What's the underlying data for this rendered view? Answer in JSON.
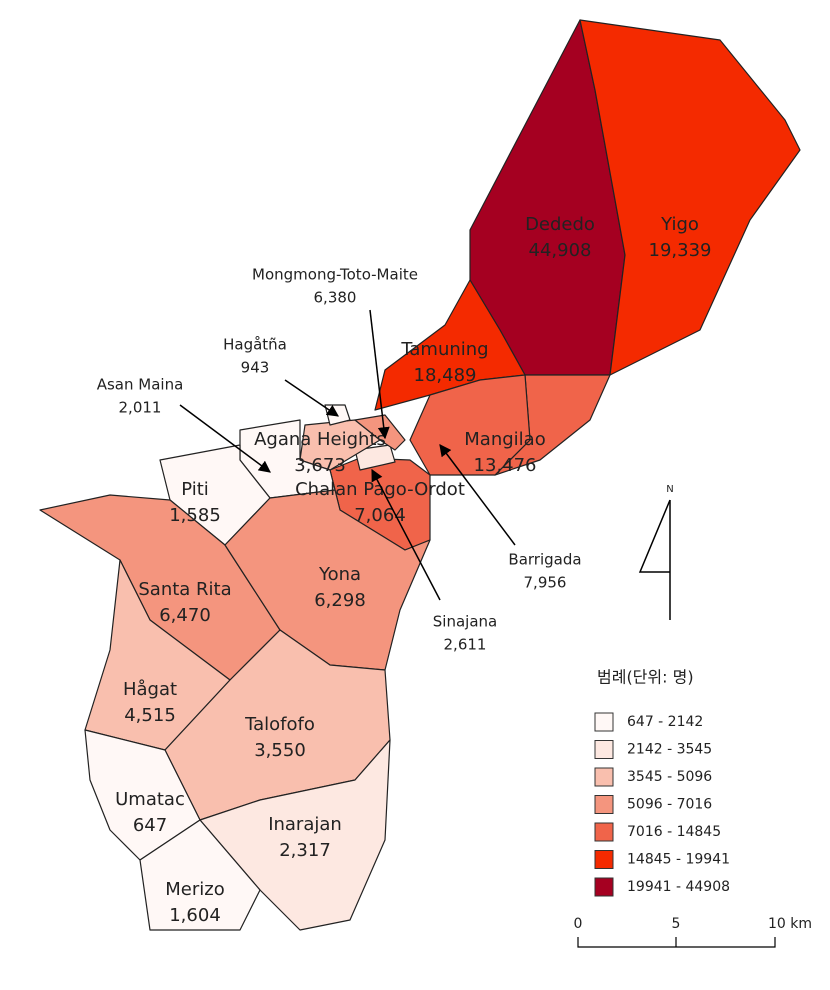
{
  "map": {
    "regions": [
      {
        "name": "Dededo",
        "population": "44,908",
        "color": "#a50021"
      },
      {
        "name": "Yigo",
        "population": "19,339",
        "color": "#f42a00"
      },
      {
        "name": "Tamuning",
        "population": "18,489",
        "color": "#f42a00"
      },
      {
        "name": "Mangilao",
        "population": "13,476",
        "color": "#f0644a"
      },
      {
        "name": "Barrigada",
        "population": "7,956",
        "color": "#f0644a"
      },
      {
        "name": "Chalan Pago-Ordot",
        "population": "7,064",
        "color": "#f0644a"
      },
      {
        "name": "Sinajana",
        "population": "2,611",
        "color": "#fde8e1"
      },
      {
        "name": "Agana Heights",
        "population": "3,673",
        "color": "#f9bfae"
      },
      {
        "name": "Mongmong-Toto-Maite",
        "population": "6,380",
        "color": "#f4957e"
      },
      {
        "name": "Hagåtña",
        "population": "943",
        "color": "#fff8f6"
      },
      {
        "name": "Asan Maina",
        "population": "2,011",
        "color": "#fff8f6"
      },
      {
        "name": "Piti",
        "population": "1,585",
        "color": "#fff8f6"
      },
      {
        "name": "Santa Rita",
        "population": "6,470",
        "color": "#f4957e"
      },
      {
        "name": "Yona",
        "population": "6,298",
        "color": "#f4957e"
      },
      {
        "name": "Hågat",
        "population": "4,515",
        "color": "#f9bfae"
      },
      {
        "name": "Talofofo",
        "population": "3,550",
        "color": "#f9bfae"
      },
      {
        "name": "Inarajan",
        "population": "2,317",
        "color": "#fde8e1"
      },
      {
        "name": "Umatac",
        "population": "647",
        "color": "#fff8f6"
      },
      {
        "name": "Merizo",
        "population": "1,604",
        "color": "#fff8f6"
      }
    ],
    "legend": {
      "title": "범례(단위: 명)",
      "entries": [
        {
          "label": "647 - 2142",
          "color": "#fff8f6"
        },
        {
          "label": "2142 - 3545",
          "color": "#fde8e1"
        },
        {
          "label": "3545 - 5096",
          "color": "#f9bfae"
        },
        {
          "label": "5096 - 7016",
          "color": "#f4957e"
        },
        {
          "label": "7016 - 14845",
          "color": "#f0644a"
        },
        {
          "label": "14845 - 19941",
          "color": "#f42a00"
        },
        {
          "label": "19941 - 44908",
          "color": "#a50021"
        }
      ]
    },
    "north": "N",
    "scale": {
      "labels": [
        "0",
        "5",
        "10 km"
      ]
    }
  }
}
